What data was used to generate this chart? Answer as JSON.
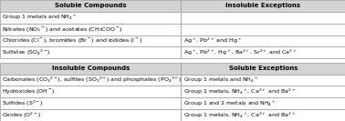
{
  "header_bg": "#d4d4d4",
  "body_bg": "#ffffff",
  "border_color": "#999999",
  "col_split": 0.525,
  "col1_header": "Soluble Compounds",
  "col2_header": "Insoluble Exceptions",
  "col3_header": "Insoluble Compounds",
  "col4_header": "Soluble Exceptions",
  "soluble_rows": [
    [
      "Group 1 metals and NH$_4$$^+$",
      ""
    ],
    [
      "Nitrates (NO$_3$$^-$) and acetates (CH$_3$COO$^-$)",
      ""
    ],
    [
      "Chlorides (Cl$^-$), bromides (Br$^-$) and iodides (I$^-$)",
      "Ag$^+$, Pb$^{2+}$ and Hg$^+$"
    ],
    [
      "Sulfates (SO$_4$$^{2-}$)",
      "Ag$^+$, Pb$^{2+}$, Hg$^+$, Ba$^{2+}$, Sr$^{2+}$ and Ca$^{2+}$"
    ]
  ],
  "insoluble_rows": [
    [
      "Carbonates (CO$_3$$^{2-}$), sulfites (SO$_3$$^{2-}$) and phosphates (PO$_4$$^{3-}$)",
      "Group 1 metals and NH$_4$$^+$"
    ],
    [
      "Hydroxides (OH$^-$)",
      "Group 1 metals, NH$_4$$^+$, Ca$^{2+}$ and Ba$^{2+}$"
    ],
    [
      "Sulfides (S$^{2-}$)",
      "Group 1 and 2 metals and NH$_4$$^+$"
    ],
    [
      "Oxides (O$^{2-}$)",
      "Group 1 metals, NH$_4$$^+$, Ca$^{2+}$ and Ba$^{2+}$"
    ]
  ],
  "figsize": [
    3.78,
    1.33
  ],
  "dpi": 100,
  "fontsize": 4.5,
  "header_fontsize": 5.0
}
